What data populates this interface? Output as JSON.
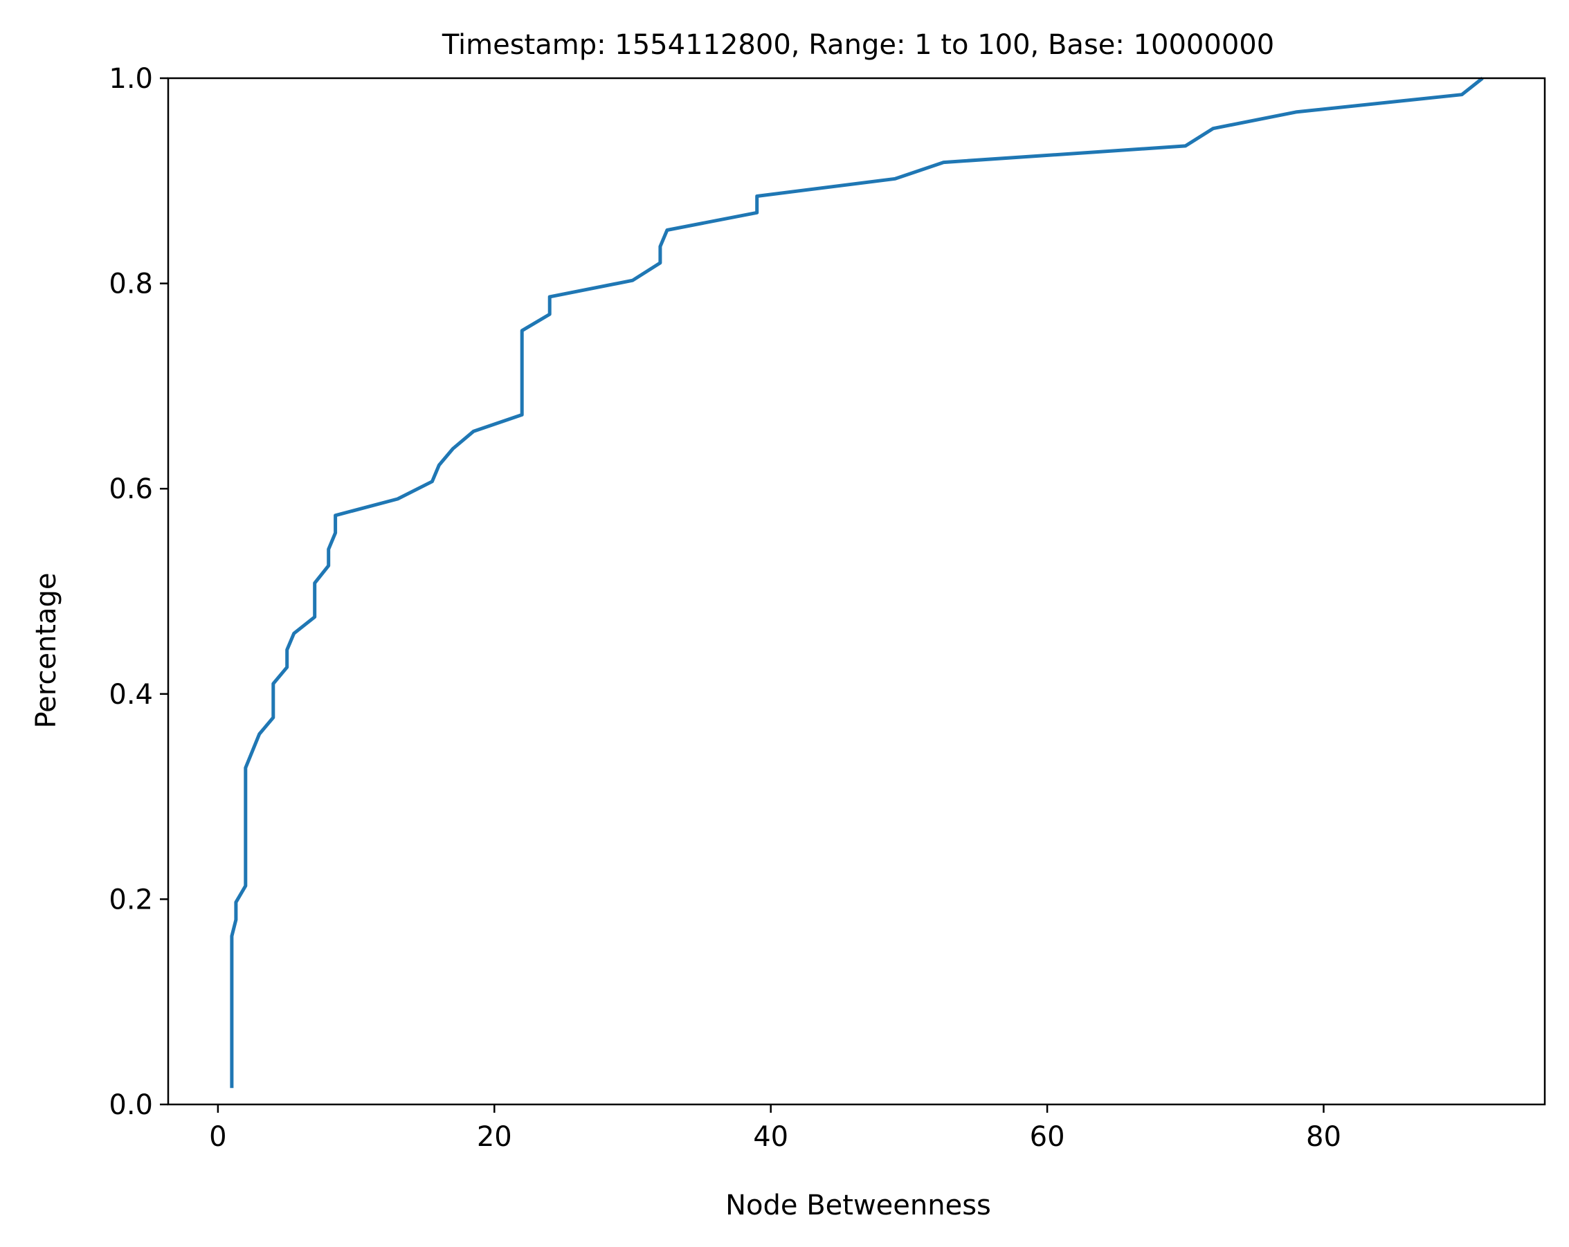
{
  "chart_data": {
    "type": "line",
    "title": "Timestamp: 1554112800, Range: 1 to 100, Base: 10000000",
    "xlabel": "Node Betweenness",
    "ylabel": "Percentage",
    "xlim": [
      -3.6,
      96
    ],
    "ylim": [
      0,
      1
    ],
    "xticks": [
      0,
      20,
      40,
      60,
      80
    ],
    "xtick_labels": [
      "0",
      "20",
      "40",
      "60",
      "80"
    ],
    "yticks": [
      0,
      0.2,
      0.4,
      0.6,
      0.8,
      1.0
    ],
    "ytick_labels": [
      "0.0",
      "0.2",
      "0.4",
      "0.6",
      "0.8",
      "1.0"
    ],
    "grid": false,
    "color": "#1f77b4",
    "series": [
      {
        "x": [
          1,
          1,
          1.3,
          1.3,
          2,
          2,
          3,
          4,
          4,
          5,
          5,
          5.5,
          7,
          7,
          8,
          8,
          8.5,
          8.5,
          13,
          15.5,
          16,
          17,
          18.5,
          22,
          22,
          24,
          24,
          30,
          32,
          32,
          32.5,
          39,
          39,
          49,
          52.5,
          70,
          72,
          78,
          90,
          91.5
        ],
        "y": [
          0.016,
          0.164,
          0.18,
          0.197,
          0.213,
          0.328,
          0.361,
          0.377,
          0.41,
          0.426,
          0.443,
          0.459,
          0.475,
          0.508,
          0.525,
          0.541,
          0.557,
          0.574,
          0.59,
          0.607,
          0.623,
          0.639,
          0.656,
          0.672,
          0.754,
          0.77,
          0.787,
          0.803,
          0.82,
          0.836,
          0.852,
          0.869,
          0.885,
          0.902,
          0.918,
          0.934,
          0.951,
          0.967,
          0.984,
          1.0
        ]
      }
    ]
  }
}
